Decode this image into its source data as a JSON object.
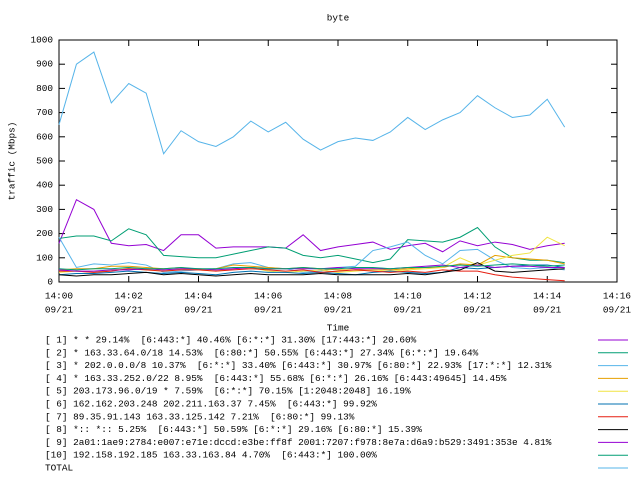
{
  "chart_data": {
    "type": "line",
    "title": "byte",
    "x_label": "Time",
    "y_label": "traffic (Mbps)",
    "x": [
      0,
      0.5,
      1,
      1.5,
      2,
      2.5,
      3,
      3.5,
      4,
      4.5,
      5,
      5.5,
      6,
      6.5,
      7,
      7.5,
      8,
      8.5,
      9,
      9.5,
      10,
      10.5,
      11,
      11.5,
      12,
      12.5,
      13,
      13.5,
      14,
      14.5
    ],
    "xlim": [
      0,
      16
    ],
    "xticks": [
      {
        "value": 0,
        "label": "14:00",
        "date": "09/21"
      },
      {
        "value": 2,
        "label": "14:02",
        "date": "09/21"
      },
      {
        "value": 4,
        "label": "14:04",
        "date": "09/21"
      },
      {
        "value": 6,
        "label": "14:06",
        "date": "09/21"
      },
      {
        "value": 8,
        "label": "14:08",
        "date": "09/21"
      },
      {
        "value": 10,
        "label": "14:10",
        "date": "09/21"
      },
      {
        "value": 12,
        "label": "14:12",
        "date": "09/21"
      },
      {
        "value": 14,
        "label": "14:14",
        "date": "09/21"
      },
      {
        "value": 16,
        "label": "14:16",
        "date": "09/21"
      }
    ],
    "ylim": [
      0,
      1000
    ],
    "yticks": [
      0,
      100,
      200,
      300,
      400,
      500,
      600,
      700,
      800,
      900,
      1000
    ],
    "grid": false,
    "series": [
      {
        "name": "[ 1] * * 29.14%  [6:443:*] 40.46% [6:*:*] 31.30% [17:443:*] 20.60%",
        "color": "#9400d3",
        "values": [
          160,
          340,
          300,
          160,
          150,
          155,
          130,
          195,
          195,
          140,
          145,
          145,
          145,
          140,
          195,
          130,
          145,
          155,
          165,
          135,
          150,
          160,
          125,
          170,
          150,
          165,
          155,
          135,
          150,
          160
        ]
      },
      {
        "name": "[ 2] * 163.33.64.0/18 14.53%  [6:80:*] 50.55% [6:443:*] 27.34% [6:*:*] 19.64%",
        "color": "#009e73",
        "values": [
          180,
          190,
          190,
          170,
          220,
          195,
          110,
          105,
          100,
          100,
          115,
          130,
          145,
          140,
          110,
          100,
          110,
          95,
          80,
          95,
          175,
          170,
          165,
          185,
          225,
          145,
          100,
          90,
          90,
          80
        ]
      },
      {
        "name": "[ 3] * 202.0.0.0/8 10.37%  [6:*:*] 33.40% [6:443:*] 30.97% [6:80:*] 22.93% [17:*:*] 12.31%",
        "color": "#56b4e9",
        "values": [
          185,
          60,
          75,
          70,
          80,
          70,
          40,
          45,
          50,
          55,
          75,
          80,
          60,
          55,
          40,
          45,
          60,
          65,
          130,
          145,
          165,
          110,
          75,
          130,
          135,
          90,
          60,
          55,
          60,
          50
        ]
      },
      {
        "name": "[ 4] * 163.33.252.0/22 8.95%  [6:443:*] 55.68% [6:*:*] 26.16% [6:443:49645] 14.45%",
        "color": "#e69f00",
        "values": [
          50,
          55,
          55,
          65,
          65,
          60,
          55,
          60,
          50,
          55,
          70,
          65,
          60,
          55,
          60,
          55,
          50,
          50,
          55,
          50,
          55,
          60,
          60,
          75,
          70,
          110,
          100,
          95,
          90,
          75
        ]
      },
      {
        "name": "[ 5] 203.173.96.0/19 * 7.59%  [6:*:*] 70.15% [1:2048:2048] 16.19%",
        "color": "#f0e442",
        "values": [
          40,
          45,
          40,
          50,
          55,
          50,
          45,
          55,
          50,
          45,
          55,
          60,
          45,
          40,
          45,
          50,
          40,
          45,
          50,
          45,
          50,
          55,
          60,
          100,
          70,
          90,
          110,
          120,
          185,
          150
        ]
      },
      {
        "name": "[ 6] 162.162.203.248 202.211.163.37 7.45%  [6:443:*] 99.92%",
        "color": "#0072b2",
        "values": [
          30,
          35,
          35,
          40,
          45,
          40,
          35,
          40,
          35,
          30,
          40,
          45,
          40,
          40,
          35,
          40,
          35,
          30,
          40,
          45,
          40,
          35,
          40,
          60,
          55,
          60,
          65,
          70,
          70,
          60
        ]
      },
      {
        "name": "[ 7] 89.35.91.143 163.33.125.142 7.21%  [6:80:*] 99.13%",
        "color": "#e51e10",
        "values": [
          45,
          45,
          40,
          45,
          55,
          50,
          45,
          50,
          50,
          45,
          50,
          55,
          50,
          45,
          50,
          40,
          45,
          50,
          45,
          40,
          45,
          40,
          50,
          45,
          45,
          30,
          20,
          15,
          10,
          5
        ]
      },
      {
        "name": "[ 8] *:: *:: 5.25%  [6:443:*] 50.59% [6:*:*] 29.16% [6:80:*] 15.39%",
        "color": "#000000",
        "values": [
          30,
          25,
          30,
          30,
          35,
          40,
          30,
          35,
          30,
          25,
          30,
          35,
          30,
          30,
          30,
          35,
          30,
          30,
          30,
          30,
          35,
          30,
          40,
          50,
          80,
          45,
          40,
          45,
          50,
          55
        ]
      },
      {
        "name": "[ 9] 2a01:1ae9:2784:e007:e71e:dccd:e3be:ff8f 2001:7207:f978:8e7a:d6a9:b529:3491:353e 4.81%",
        "color": "#9400d3",
        "values": [
          50,
          45,
          45,
          50,
          50,
          55,
          50,
          55,
          55,
          50,
          55,
          60,
          55,
          55,
          55,
          55,
          60,
          55,
          55,
          55,
          60,
          65,
          70,
          60,
          70,
          60,
          65,
          65,
          60,
          60
        ]
      },
      {
        "name": "[10] 192.158.192.185 163.33.163.84 4.70%  [6:443:*] 100.00%",
        "color": "#009e73",
        "values": [
          55,
          50,
          55,
          55,
          60,
          55,
          55,
          60,
          55,
          55,
          60,
          60,
          55,
          55,
          60,
          55,
          55,
          60,
          60,
          55,
          60,
          60,
          65,
          70,
          65,
          70,
          75,
          70,
          65,
          70
        ]
      },
      {
        "name": "TOTAL",
        "color": "#56b4e9",
        "values": [
          650,
          900,
          950,
          740,
          820,
          780,
          530,
          625,
          580,
          560,
          600,
          665,
          620,
          660,
          590,
          545,
          580,
          595,
          585,
          620,
          680,
          630,
          670,
          700,
          770,
          720,
          680,
          690,
          755,
          640
        ]
      }
    ]
  }
}
